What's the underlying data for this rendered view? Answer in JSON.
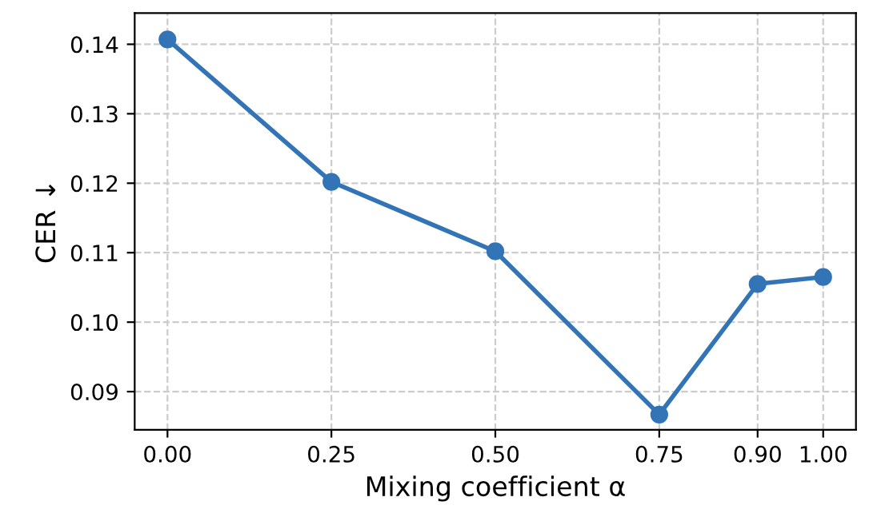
{
  "chart_data": {
    "type": "line",
    "xlabel": "Mixing coefficient α",
    "ylabel": "CER ↓",
    "x": [
      0.0,
      0.25,
      0.5,
      0.75,
      0.9,
      1.0
    ],
    "series": [
      {
        "color": "#3274b5",
        "values": [
          0.1407,
          0.1202,
          0.1102,
          0.0867,
          0.1055,
          0.1065
        ]
      }
    ],
    "xlim": [
      -0.05,
      1.05
    ],
    "ylim": [
      0.0845,
      0.1445
    ],
    "xticks": [
      {
        "value": 0.0,
        "label": "0.00"
      },
      {
        "value": 0.25,
        "label": "0.25"
      },
      {
        "value": 0.5,
        "label": "0.50"
      },
      {
        "value": 0.75,
        "label": "0.75"
      },
      {
        "value": 0.9,
        "label": "0.90"
      },
      {
        "value": 1.0,
        "label": "1.00"
      }
    ],
    "yticks": [
      {
        "value": 0.09,
        "label": "0.09"
      },
      {
        "value": 0.1,
        "label": "0.10"
      },
      {
        "value": 0.11,
        "label": "0.11"
      },
      {
        "value": 0.12,
        "label": "0.12"
      },
      {
        "value": 0.13,
        "label": "0.13"
      },
      {
        "value": 0.14,
        "label": "0.14"
      }
    ],
    "grid": true,
    "marker": "circle",
    "line_style": "solid"
  }
}
